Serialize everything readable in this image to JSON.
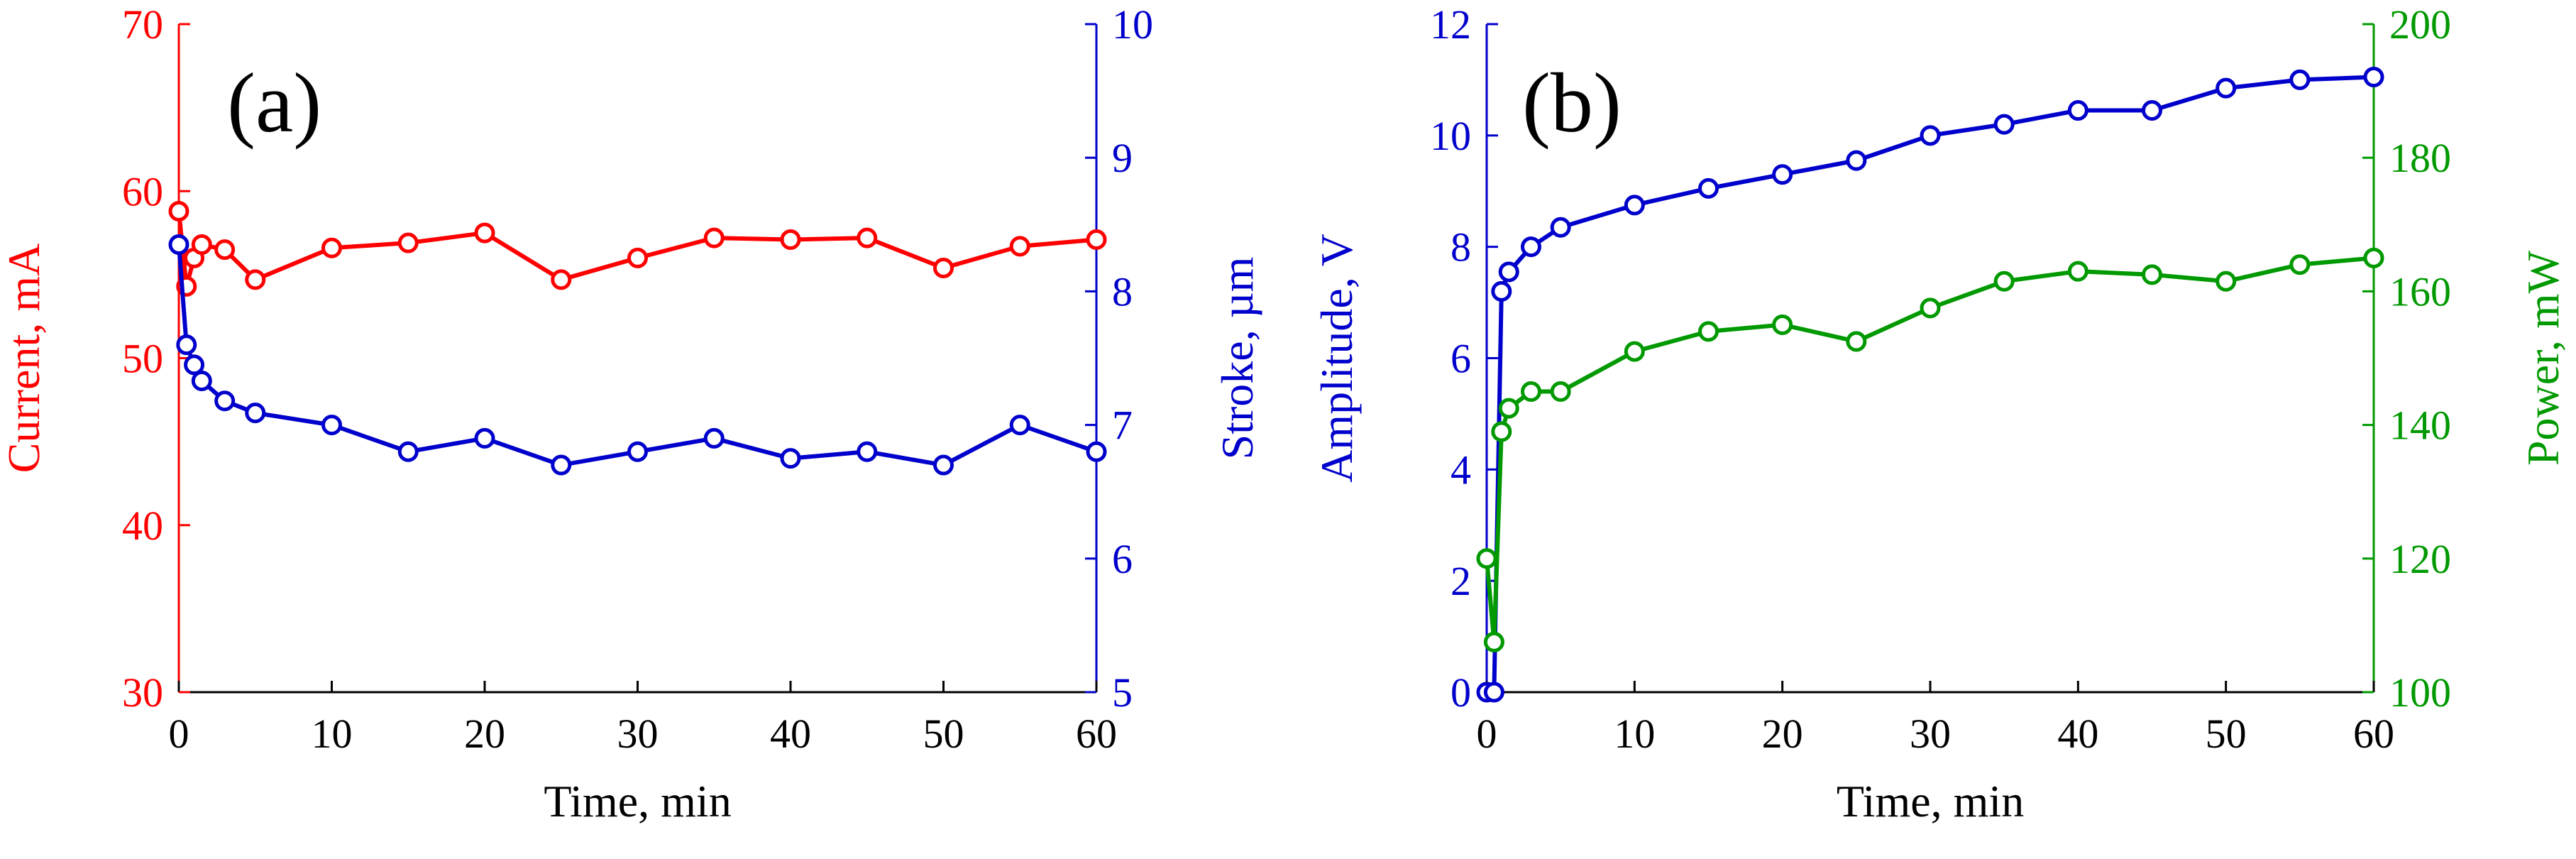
{
  "colors": {
    "red": "#ff0000",
    "blue": "#0000cc",
    "green": "#009900",
    "axis": "#000000",
    "marker_fill": "#ffffff"
  },
  "chart_data": [
    {
      "type": "line",
      "panel_label": "(a)",
      "xlabel": "Time, min",
      "xlim": [
        0,
        60
      ],
      "xticks": [
        0,
        10,
        20,
        30,
        40,
        50,
        60
      ],
      "left_axis": {
        "label": "Current, mA",
        "color": "#ff0000",
        "lim": [
          30,
          70
        ],
        "ticks": [
          30,
          40,
          50,
          60,
          70
        ]
      },
      "right_axis": {
        "label": "Stroke, µm",
        "color": "#0000cc",
        "lim": [
          5,
          10
        ],
        "ticks": [
          5,
          6,
          7,
          8,
          9,
          10
        ]
      },
      "series": [
        {
          "name": "Current",
          "axis": "left",
          "color": "#ff0000",
          "x": [
            0,
            0.5,
            1,
            1.5,
            3,
            5,
            10,
            15,
            20,
            25,
            30,
            35,
            40,
            45,
            50,
            55,
            60
          ],
          "y": [
            58.8,
            54.3,
            56.0,
            56.8,
            56.5,
            54.7,
            56.6,
            56.9,
            57.5,
            54.7,
            56.0,
            57.2,
            57.1,
            57.2,
            55.4,
            56.7,
            57.1
          ]
        },
        {
          "name": "Stroke",
          "axis": "right",
          "color": "#0000cc",
          "x": [
            0,
            0.5,
            1,
            1.5,
            3,
            5,
            10,
            15,
            20,
            25,
            30,
            35,
            40,
            45,
            50,
            55,
            60
          ],
          "y": [
            8.35,
            7.6,
            7.45,
            7.33,
            7.18,
            7.09,
            7.0,
            6.8,
            6.9,
            6.7,
            6.8,
            6.9,
            6.75,
            6.8,
            6.7,
            7.0,
            6.8
          ]
        }
      ]
    },
    {
      "type": "line",
      "panel_label": "(b)",
      "xlabel": "Time, min",
      "xlim": [
        0,
        60
      ],
      "xticks": [
        0,
        10,
        20,
        30,
        40,
        50,
        60
      ],
      "left_axis": {
        "label": "Amplitude, V",
        "color": "#0000cc",
        "lim": [
          0,
          12
        ],
        "ticks": [
          0,
          2,
          4,
          6,
          8,
          10,
          12
        ]
      },
      "right_axis": {
        "label": "Power, mW",
        "color": "#009900",
        "lim": [
          100,
          200
        ],
        "ticks": [
          100,
          120,
          140,
          160,
          180,
          200
        ]
      },
      "series": [
        {
          "name": "Amplitude",
          "axis": "left",
          "color": "#0000cc",
          "x": [
            0,
            0.5,
            1,
            1.5,
            3,
            5,
            10,
            15,
            20,
            25,
            30,
            35,
            40,
            45,
            50,
            55,
            60
          ],
          "y": [
            0,
            0,
            7.2,
            7.55,
            8.0,
            8.35,
            8.75,
            9.05,
            9.3,
            9.55,
            10.0,
            10.2,
            10.45,
            10.45,
            10.85,
            11.0,
            11.05
          ]
        },
        {
          "name": "Power",
          "axis": "right",
          "color": "#009900",
          "x": [
            0,
            0.5,
            1,
            1.5,
            3,
            5,
            10,
            15,
            20,
            25,
            30,
            35,
            40,
            45,
            50,
            55,
            60
          ],
          "y": [
            120,
            107.5,
            139,
            142.5,
            145,
            145,
            151,
            154,
            155,
            152.5,
            157.5,
            161.5,
            163,
            162.5,
            161.5,
            164,
            165
          ]
        }
      ]
    }
  ]
}
